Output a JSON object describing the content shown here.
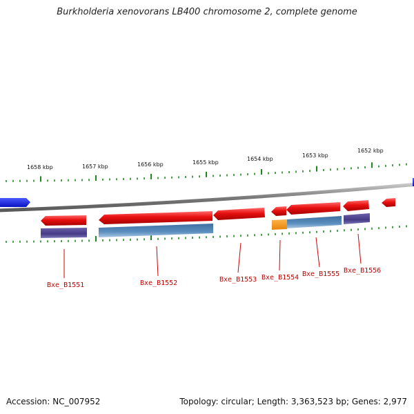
{
  "title": "Burkholderia xenovorans LB400 chromosome 2, complete genome",
  "kbp_labels": [
    "1658 kbp",
    "1657 kbp",
    "1656 kbp",
    "1655 kbp",
    "1654 kbp",
    "1653 kbp",
    "1652 kbp"
  ],
  "gene_labels": [
    "Bxe_B1551",
    "Bxe_B1552",
    "Bxe_B1553",
    "Bxe_B1554",
    "Bxe_B1555",
    "Bxe_B1556"
  ],
  "footer": {
    "accession": "Accession: NC_007952",
    "stats": "Topology: circular; Length: 3,363,523 bp; Genes: 2,977"
  },
  "colors": {
    "backbone": "#8a8a8a",
    "gene_forward_strand": "#e81010",
    "cds_purple": "#4a3f8a",
    "cds_steel_blue": "#4a7fb0",
    "cds_orange": "#f39a1a",
    "neighbor_gene_blue": "#1020e0",
    "tick_green": "#1a8a1a",
    "label_red": "#c00000"
  }
}
